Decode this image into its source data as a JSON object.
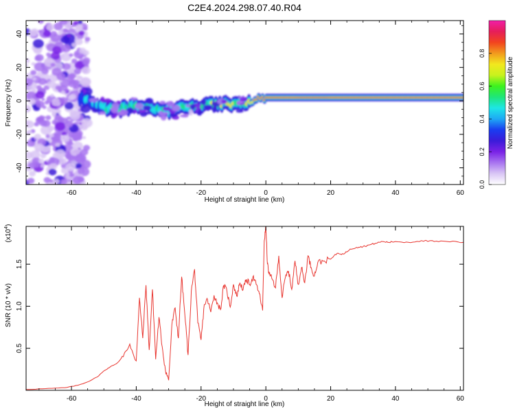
{
  "title": "C2E4.2024.298.07.40.R04",
  "chart_data": [
    {
      "type": "heatmap",
      "xlabel": "Height of straight line (km)",
      "ylabel": "Frequency (Hz)",
      "xlim": [
        -74,
        61
      ],
      "ylim": [
        -50,
        48
      ],
      "xticks": [
        -60,
        -40,
        -20,
        0,
        20,
        40,
        60
      ],
      "yticks": [
        -40,
        -20,
        0,
        20,
        40
      ],
      "colorbar": {
        "label": "Normalized spectral amplitude",
        "range": [
          0,
          1
        ],
        "ticks": [
          "0.0",
          "0.2",
          "0.4",
          "0.6",
          "0.8"
        ],
        "colors": [
          "#ffffff",
          "#d9c6f5",
          "#a874f0",
          "#7a22e6",
          "#3b1bd9",
          "#1a3cf0",
          "#1ea8f5",
          "#1ee6e6",
          "#1ee67a",
          "#3df21e",
          "#c8f21e",
          "#f2e81e",
          "#f29a1e",
          "#f2441e",
          "#e61e5a",
          "#f21ea8"
        ]
      },
      "ridge": {
        "x": [
          -58,
          -55,
          -50,
          -45,
          -40,
          -35,
          -30,
          -25,
          -20,
          -15,
          -10,
          -5,
          0,
          10,
          20,
          30,
          40,
          50,
          61
        ],
        "frequency_hz": [
          2,
          0,
          -4,
          -5,
          -3,
          -4,
          -6,
          -4,
          -3,
          -2,
          -2,
          0,
          2,
          2,
          2,
          2,
          2,
          2,
          2
        ],
        "peak_amplitude": [
          0.3,
          0.4,
          0.55,
          0.6,
          0.55,
          0.55,
          0.5,
          0.55,
          0.6,
          0.65,
          0.7,
          0.8,
          0.9,
          0.95,
          0.95,
          0.9,
          0.9,
          0.9,
          0.9
        ]
      }
    },
    {
      "type": "line",
      "xlabel": "Height of straight line (km)",
      "ylabel": "SNR (10 * v/v)",
      "multiplier_label": "(x10",
      "multiplier_exp": "4",
      "xlim": [
        -74,
        61
      ],
      "ylim": [
        0,
        19500
      ],
      "xticks": [
        -60,
        -40,
        -20,
        0,
        20,
        40,
        60
      ],
      "yticks": [
        5000,
        10000,
        15000
      ],
      "ytick_labels": [
        "0.5",
        "1.0",
        "1.5"
      ],
      "color": "#e8342e",
      "series": [
        {
          "x": [
            -74,
            -68,
            -62,
            -58,
            -55,
            -52,
            -50,
            -48,
            -46,
            -44,
            -42,
            -40,
            -39,
            -38,
            -37,
            -36,
            -35,
            -34,
            -33,
            -32,
            -31,
            -30,
            -29,
            -28,
            -27,
            -26,
            -25,
            -24,
            -23,
            -22,
            -21,
            -20,
            -19,
            -18,
            -17,
            -16,
            -15,
            -14,
            -13,
            -12,
            -11,
            -10,
            -9,
            -8,
            -7,
            -6,
            -5,
            -4,
            -3,
            -2,
            -1,
            -0.5,
            0,
            0.5,
            1,
            2,
            3,
            4,
            5,
            6,
            7,
            8,
            9,
            10,
            11,
            12,
            13,
            14,
            15,
            16,
            18,
            20,
            22,
            24,
            26,
            28,
            30,
            32,
            34,
            36,
            38,
            40,
            44,
            48,
            52,
            56,
            61
          ],
          "y": [
            100,
            200,
            300,
            600,
            1000,
            1600,
            2300,
            2800,
            3200,
            4000,
            5500,
            3500,
            11000,
            6200,
            12500,
            4800,
            12000,
            3700,
            8700,
            5200,
            2400,
            1200,
            7800,
            9800,
            6200,
            13500,
            9000,
            4200,
            11800,
            14400,
            8000,
            6000,
            10200,
            10800,
            9300,
            11300,
            10400,
            9600,
            12500,
            11800,
            9900,
            12600,
            11200,
            12800,
            12000,
            13200,
            12600,
            13500,
            12600,
            11500,
            9500,
            17800,
            19400,
            15000,
            13800,
            13200,
            12200,
            16000,
            11000,
            13400,
            14200,
            12000,
            15400,
            12600,
            14600,
            12800,
            16000,
            14600,
            13600,
            15200,
            15400,
            15600,
            16300,
            16200,
            16800,
            17000,
            17100,
            17300,
            17500,
            17700,
            17600,
            17700,
            17600,
            17800,
            17700,
            17700,
            17600
          ]
        }
      ]
    }
  ]
}
